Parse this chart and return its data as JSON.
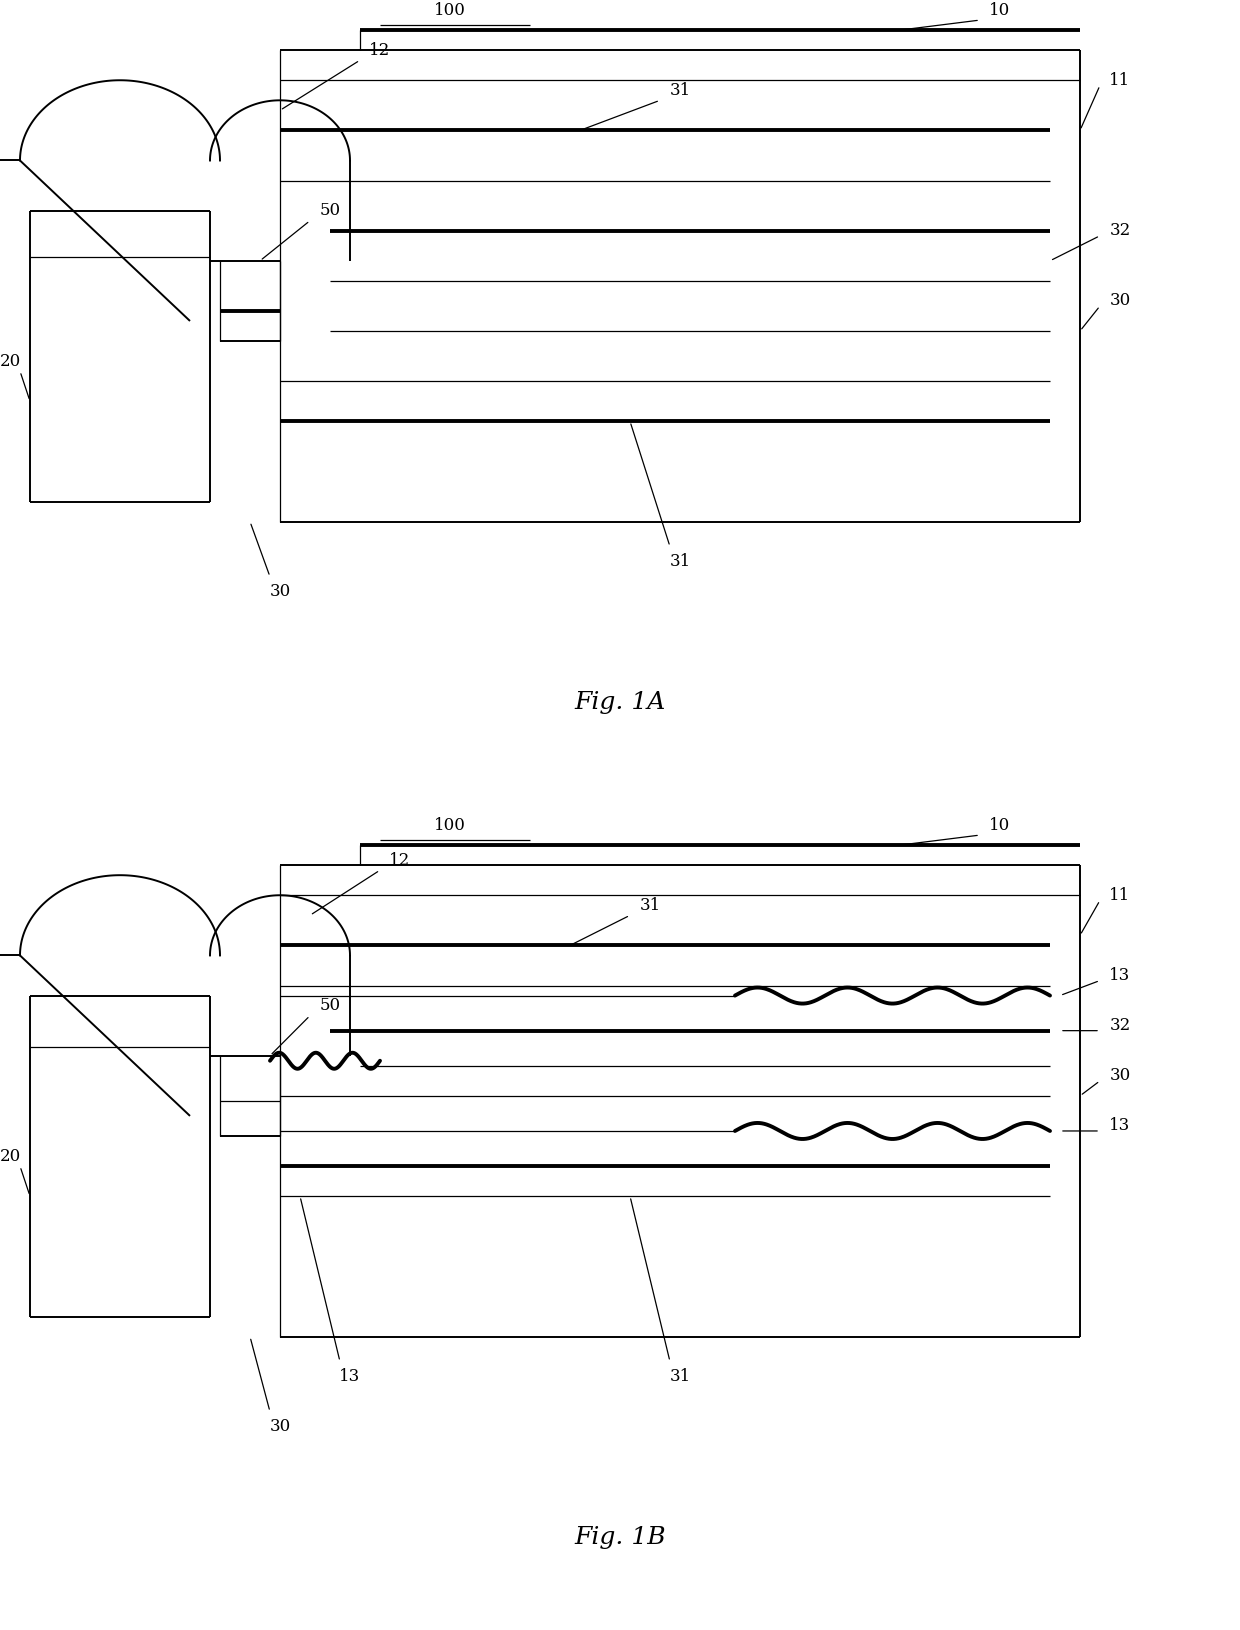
{
  "fig_width": 12.4,
  "fig_height": 16.3,
  "bg_color": "#ffffff",
  "line_color": "#000000",
  "lw_thin": 0.9,
  "lw_med": 1.4,
  "lw_thick": 2.8,
  "label_fontsize": 12,
  "caption_fontsize": 18
}
